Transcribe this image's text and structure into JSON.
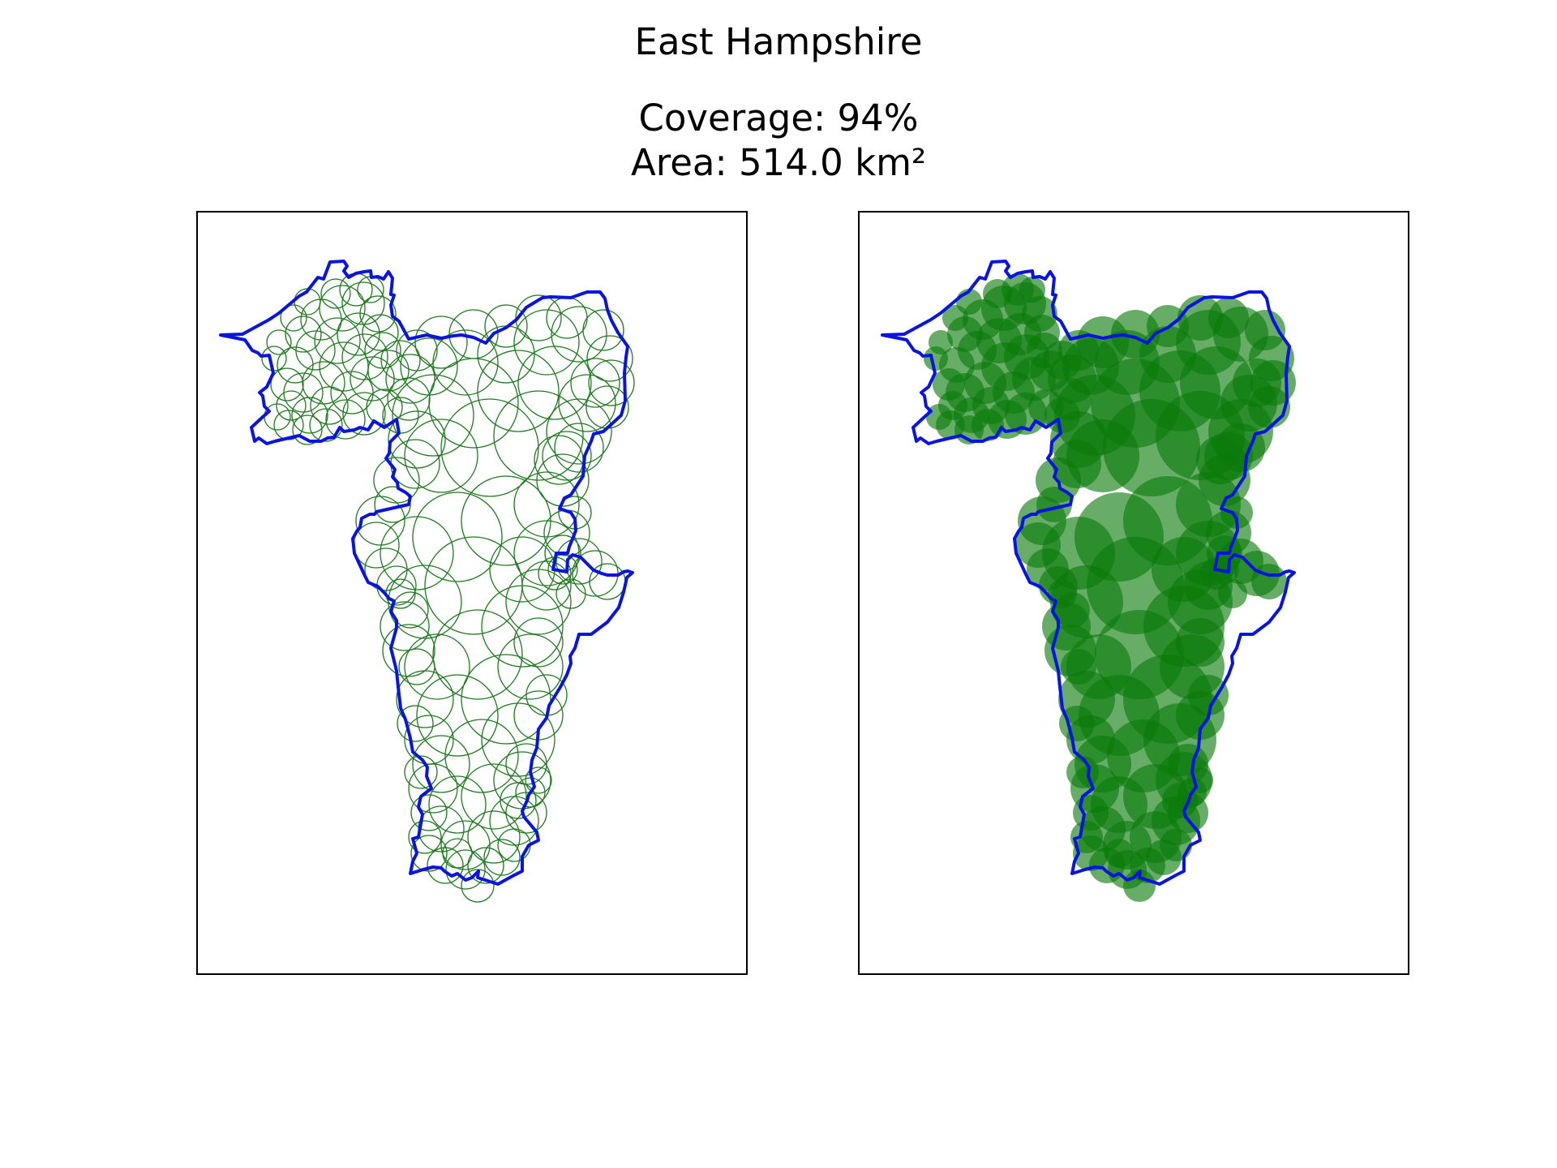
{
  "figure": {
    "title": "East Hampshire",
    "coverage_label": "Coverage: 94%",
    "area_label": "Area: 514.0 km²"
  },
  "colors": {
    "boundary": "#0a14e0",
    "circle_outline": "#1f7a1f",
    "circle_fill": "#0a7a0a",
    "background": "#ffffff",
    "axes_frame": "#000000"
  },
  "region": {
    "name": "East Hampshire",
    "coverage_percent": 94,
    "area_km2": 514.0
  },
  "panels": [
    {
      "id": "outline-panel",
      "style": "circle outlines"
    },
    {
      "id": "filled-panel",
      "style": "filled translucent circles"
    }
  ]
}
